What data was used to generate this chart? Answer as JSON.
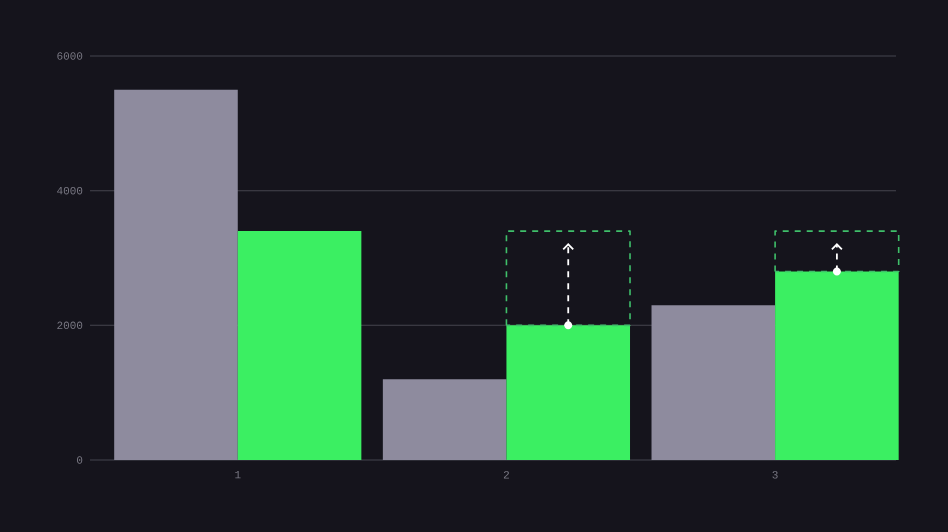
{
  "chart_data": {
    "type": "bar",
    "categories": [
      "1",
      "2",
      "3"
    ],
    "series": [
      {
        "color": "#8e8b9e",
        "values": [
          5500,
          1200,
          2300
        ]
      },
      {
        "color": "#3bef62",
        "values": [
          3400,
          2000,
          2800
        ]
      },
      {
        "color": "#3fbf6a",
        "line_style": "dashed",
        "base": [
          null,
          2000,
          2800
        ],
        "values": [
          null,
          1400,
          600
        ]
      }
    ],
    "ylim": [
      0,
      6000
    ],
    "yticks": [
      0,
      2000,
      4000,
      6000
    ],
    "grid": "y"
  }
}
